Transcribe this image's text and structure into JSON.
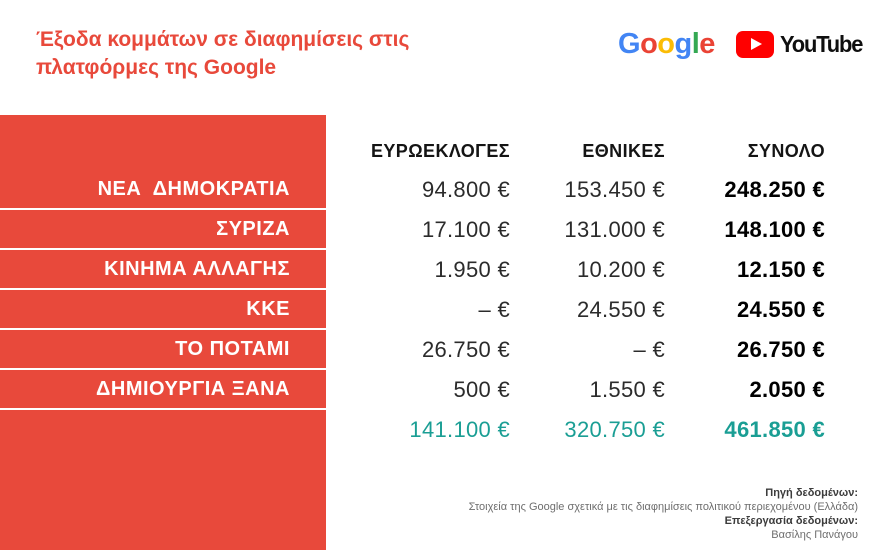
{
  "title": {
    "line1": "Έξοδα κομμάτων σε διαφημίσεις στις",
    "line2": "πλατφόρμες της Google"
  },
  "logos": {
    "google": {
      "letters": [
        {
          "ch": "G",
          "style": "color:#4285F4"
        },
        {
          "ch": "o",
          "style": "color:#EA4335"
        },
        {
          "ch": "o",
          "style": "color:#FBBC05"
        },
        {
          "ch": "g",
          "style": "color:#4285F4"
        },
        {
          "ch": "l",
          "style": "color:#34A853"
        },
        {
          "ch": "e",
          "style": "color:#EA4335"
        }
      ]
    },
    "youtube": {
      "label": "YouTube",
      "play_icon": "youtube-play-icon"
    }
  },
  "table": {
    "columns": {
      "euro": "ΕΥΡΩΕΚΛΟΓΕΣ",
      "national": "ΕΘΝΙΚΕΣ",
      "total": "ΣΥΝΟΛΟ"
    },
    "rows": [
      {
        "party": "ΝΕΑ  ΔΗΜΟΚΡΑΤΙΑ",
        "euro": "94.800 €",
        "national": "153.450 €",
        "total": "248.250 €"
      },
      {
        "party": "ΣΥΡΙΖΑ",
        "euro": "17.100 €",
        "national": "131.000 €",
        "total": "148.100 €"
      },
      {
        "party": "ΚΙΝΗΜΑ ΑΛΛΑΓΗΣ",
        "euro": "1.950 €",
        "national": "10.200 €",
        "total": "12.150 €"
      },
      {
        "party": "ΚΚΕ",
        "euro": "– €",
        "national": "24.550 €",
        "total": "24.550 €"
      },
      {
        "party": "ΤΟ ΠΟΤΑΜΙ",
        "euro": "26.750 €",
        "national": "– €",
        "total": "26.750 €"
      },
      {
        "party": "ΔΗΜΙΟΥΡΓΙΑ ΞΑΝΑ",
        "euro": "500 €",
        "national": "1.550 €",
        "total": "2.050 €"
      }
    ],
    "totals": {
      "euro": "141.100 €",
      "national": "320.750 €",
      "total": "461.850 €"
    }
  },
  "footer": {
    "source_label": "Πηγή δεδομένων:",
    "source_value": "Στοιχεία της Google σχετικά με τις διαφημίσεις πολιτικού περιεχομένου (Ελλάδα)",
    "editing_label": "Επεξεργασία δεδομένων:",
    "editing_value": "Βασίλης Πανάγου"
  },
  "colors": {
    "accent_red": "#E8493B",
    "accent_teal": "#1A9E94",
    "youtube_red": "#FF0000"
  },
  "chart_data": {
    "type": "table",
    "title": "Έξοδα κομμάτων σε διαφημίσεις στις πλατφόρμες της Google",
    "unit": "€",
    "categories": [
      "ΝΕΑ ΔΗΜΟΚΡΑΤΙΑ",
      "ΣΥΡΙΖΑ",
      "ΚΙΝΗΜΑ ΑΛΛΑΓΗΣ",
      "ΚΚΕ",
      "ΤΟ ΠΟΤΑΜΙ",
      "ΔΗΜΙΟΥΡΓΙΑ ΞΑΝΑ"
    ],
    "series": [
      {
        "name": "ΕΥΡΩΕΚΛΟΓΕΣ",
        "values": [
          94800,
          17100,
          1950,
          null,
          26750,
          500
        ],
        "total": 141100
      },
      {
        "name": "ΕΘΝΙΚΕΣ",
        "values": [
          153450,
          131000,
          10200,
          24550,
          null,
          1550
        ],
        "total": 320750
      },
      {
        "name": "ΣΥΝΟΛΟ",
        "values": [
          248250,
          148100,
          12150,
          24550,
          26750,
          2050
        ],
        "total": 461850
      }
    ]
  }
}
